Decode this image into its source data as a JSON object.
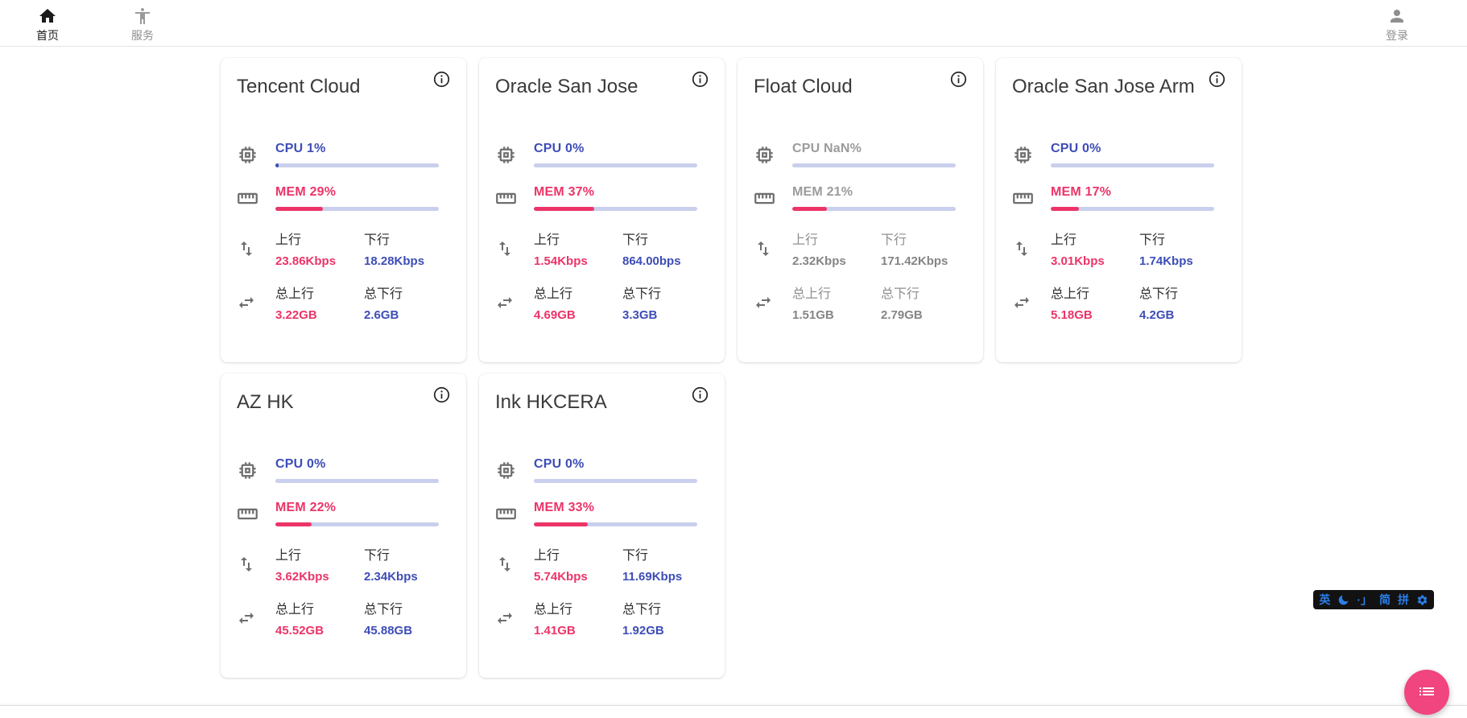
{
  "nav": {
    "home": "首页",
    "services": "服务",
    "login": "登录"
  },
  "stat_labels": {
    "up": "上行",
    "down": "下行",
    "total_up": "总上行",
    "total_down": "总下行"
  },
  "cards": [
    {
      "name": "Tencent Cloud",
      "offline": false,
      "cpu_text": "CPU 1%",
      "cpu_pct": 1,
      "mem_text": "MEM 29%",
      "mem_pct": 29,
      "up": "23.86Kbps",
      "down": "18.28Kbps",
      "total_up": "3.22GB",
      "total_down": "2.6GB"
    },
    {
      "name": "Oracle San Jose",
      "offline": false,
      "cpu_text": "CPU 0%",
      "cpu_pct": 0,
      "mem_text": "MEM 37%",
      "mem_pct": 37,
      "up": "1.54Kbps",
      "down": "864.00bps",
      "total_up": "4.69GB",
      "total_down": "3.3GB"
    },
    {
      "name": "Float Cloud",
      "offline": true,
      "cpu_text": "CPU NaN%",
      "cpu_pct": 0,
      "mem_text": "MEM 21%",
      "mem_pct": 21,
      "up": "2.32Kbps",
      "down": "171.42Kbps",
      "total_up": "1.51GB",
      "total_down": "2.79GB"
    },
    {
      "name": "Oracle San Jose Arm",
      "offline": false,
      "cpu_text": "CPU 0%",
      "cpu_pct": 0,
      "mem_text": "MEM 17%",
      "mem_pct": 17,
      "up": "3.01Kbps",
      "down": "1.74Kbps",
      "total_up": "5.18GB",
      "total_down": "4.2GB"
    },
    {
      "name": "AZ HK",
      "offline": false,
      "cpu_text": "CPU 0%",
      "cpu_pct": 0,
      "mem_text": "MEM 22%",
      "mem_pct": 22,
      "up": "3.62Kbps",
      "down": "2.34Kbps",
      "total_up": "45.52GB",
      "total_down": "45.88GB"
    },
    {
      "name": "Ink HKCERA",
      "offline": false,
      "cpu_text": "CPU 0%",
      "cpu_pct": 0,
      "mem_text": "MEM 33%",
      "mem_pct": 33,
      "up": "5.74Kbps",
      "down": "11.69Kbps",
      "total_up": "1.41GB",
      "total_down": "1.92GB"
    }
  ],
  "ime": {
    "lang": "英",
    "punct": "·」",
    "simplified": "简",
    "pinyin": "拼"
  },
  "colors": {
    "accent_blue": "#3d4db7",
    "accent_pink": "#ec3468",
    "bar_track": "#c9cfec",
    "fab_pink": "#f0457f",
    "ime_blue": "#2b7de9"
  }
}
